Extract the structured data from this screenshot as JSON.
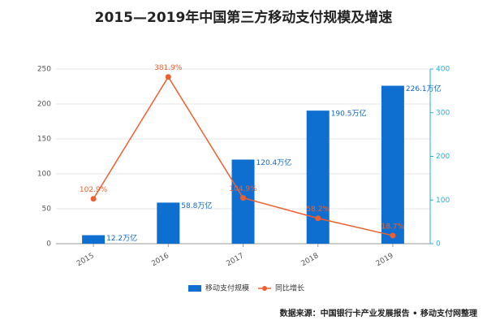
{
  "chart_data": {
    "type": "bar",
    "title": "2015—2019年中国第三方移动支付规模及增速",
    "categories": [
      "2015",
      "2016",
      "2017",
      "2018",
      "2019"
    ],
    "series": [
      {
        "name": "移动支付规模",
        "type": "bar",
        "color": "#0f6fd0",
        "values": [
          12.2,
          58.8,
          120.4,
          190.5,
          226.1
        ],
        "value_labels": [
          "12.2万亿",
          "58.8万亿",
          "120.4万亿",
          "190.5万亿",
          "226.1万亿"
        ]
      },
      {
        "name": "同比增长",
        "type": "line",
        "axis": "y2",
        "color": "#ef5f2e",
        "values": [
          102.9,
          381.9,
          104.9,
          58.2,
          18.7
        ],
        "value_labels": [
          "102.9%",
          "381.9%",
          "104.9%",
          "58.2%",
          "18.7%"
        ]
      }
    ],
    "ylim": [
      0,
      250
    ],
    "yticks": [
      0,
      50,
      100,
      150,
      200,
      250
    ],
    "y2lim": [
      0,
      400
    ],
    "y2ticks": [
      0,
      100,
      200,
      300,
      400
    ],
    "y2color": "#23b2da",
    "grid": true,
    "source": "数据来源：中国银行卡产业发展报告 • 移动支付网整理"
  }
}
